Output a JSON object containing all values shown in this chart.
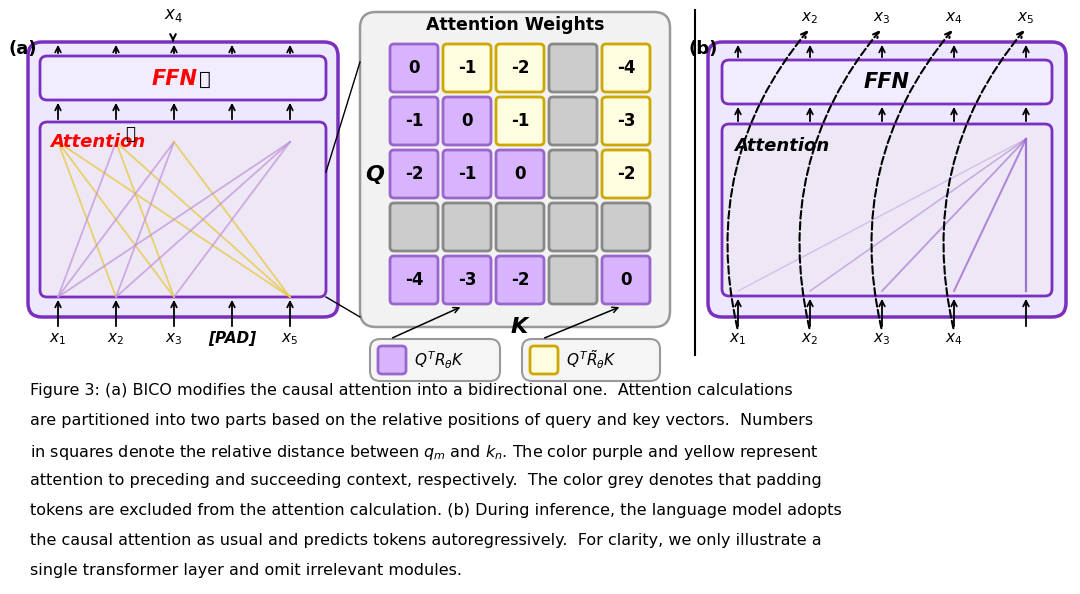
{
  "purple_border": "#7B2FBE",
  "very_light_purple": "#EEE8FF",
  "light_purple_box": "#F0EAFF",
  "purple_cell_fill": "#D8B4FE",
  "purple_cell_border": "#9966CC",
  "yellow_cell_fill": "#FFFDE0",
  "yellow_cell_border": "#CCA800",
  "grey_cell_fill": "#CCCCCC",
  "grey_cell_border": "#888888",
  "matrix_bg": "#F0F0F0",
  "matrix_border": "#888888",
  "white": "#FFFFFF",
  "red": "#FF0000",
  "matrix_vals": [
    [
      "0",
      "-1",
      "-2",
      "",
      "-4"
    ],
    [
      "-1",
      "0",
      "-1",
      "",
      "-3"
    ],
    [
      "-2",
      "-1",
      "0",
      "",
      "-2"
    ],
    [
      "",
      "",
      "",
      "",
      ""
    ],
    [
      "-4",
      "-3",
      "-2",
      "",
      "0"
    ]
  ],
  "matrix_colors": [
    [
      "P",
      "Y",
      "Y",
      "G",
      "Y"
    ],
    [
      "P",
      "P",
      "Y",
      "G",
      "Y"
    ],
    [
      "P",
      "P",
      "P",
      "G",
      "Y"
    ],
    [
      "G",
      "G",
      "G",
      "G",
      "G"
    ],
    [
      "P",
      "P",
      "P",
      "G",
      "P"
    ]
  ],
  "caption_lines": [
    "Figure 3: (a) BICO modifies the causal attention into a bidirectional one.  Attention calculations",
    "are partitioned into two parts based on the relative positions of query and key vectors.  Numbers",
    "in squares denote the relative distance between $q_m$ and $k_n$. The color purple and yellow represent",
    "attention to preceding and succeeding context, respectively.  The color grey denotes that padding",
    "tokens are excluded from the attention calculation. (b) During inference, the language model adopts",
    "the causal attention as usual and predicts tokens autoregressively.  For clarity, we only illustrate a",
    "single transformer layer and omit irrelevant modules."
  ]
}
